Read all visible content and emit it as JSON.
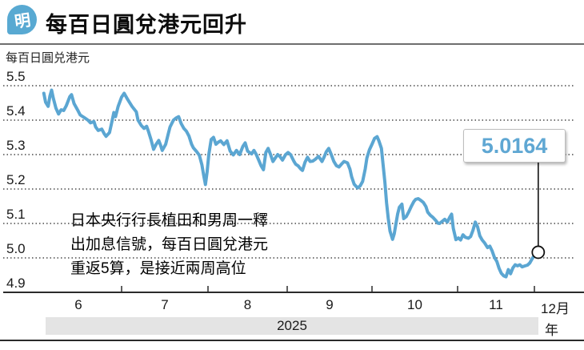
{
  "header": {
    "logo_char": "明",
    "title": "每百日圓兌港元回升"
  },
  "chart_data": {
    "type": "line",
    "title": "每百日圓兑港元",
    "ylabel": "每百日圓兑港元",
    "ylim": [
      4.9,
      5.5
    ],
    "y_ticks": [
      "5.5",
      "5.4",
      "5.3",
      "5.2",
      "5.1",
      "5.0",
      "4.9"
    ],
    "x_tick_labels": [
      "6",
      "7",
      "8",
      "9",
      "10",
      "11",
      "12月"
    ],
    "x_axis_note": "x values are decimal months of 2025 (6.0 = June 1)",
    "year_band_label": "2025",
    "year_suffix": "年",
    "grid": "dotted horizontal",
    "legend": "none",
    "line_color": "#5ba6d2",
    "last_value": 5.0164,
    "points": [
      [
        6.1,
        5.478
      ],
      [
        6.12,
        5.452
      ],
      [
        6.15,
        5.44
      ],
      [
        6.17,
        5.47
      ],
      [
        6.19,
        5.487
      ],
      [
        6.21,
        5.463
      ],
      [
        6.24,
        5.435
      ],
      [
        6.27,
        5.418
      ],
      [
        6.3,
        5.43
      ],
      [
        6.33,
        5.428
      ],
      [
        6.36,
        5.442
      ],
      [
        6.4,
        5.468
      ],
      [
        6.42,
        5.474
      ],
      [
        6.45,
        5.448
      ],
      [
        6.49,
        5.43
      ],
      [
        6.52,
        5.415
      ],
      [
        6.57,
        5.407
      ],
      [
        6.61,
        5.4
      ],
      [
        6.64,
        5.392
      ],
      [
        6.68,
        5.396
      ],
      [
        6.7,
        5.38
      ],
      [
        6.73,
        5.37
      ],
      [
        6.77,
        5.374
      ],
      [
        6.8,
        5.36
      ],
      [
        6.82,
        5.353
      ],
      [
        6.86,
        5.364
      ],
      [
        6.89,
        5.398
      ],
      [
        6.91,
        5.422
      ],
      [
        6.93,
        5.41
      ],
      [
        6.96,
        5.44
      ],
      [
        7.0,
        5.467
      ],
      [
        7.03,
        5.478
      ],
      [
        7.07,
        5.46
      ],
      [
        7.12,
        5.44
      ],
      [
        7.17,
        5.424
      ],
      [
        7.19,
        5.4
      ],
      [
        7.23,
        5.384
      ],
      [
        7.26,
        5.376
      ],
      [
        7.29,
        5.382
      ],
      [
        7.31,
        5.368
      ],
      [
        7.34,
        5.344
      ],
      [
        7.37,
        5.315
      ],
      [
        7.4,
        5.33
      ],
      [
        7.43,
        5.341
      ],
      [
        7.45,
        5.328
      ],
      [
        7.47,
        5.312
      ],
      [
        7.51,
        5.33
      ],
      [
        7.54,
        5.36
      ],
      [
        7.56,
        5.38
      ],
      [
        7.6,
        5.4
      ],
      [
        7.63,
        5.406
      ],
      [
        7.66,
        5.41
      ],
      [
        7.69,
        5.39
      ],
      [
        7.72,
        5.376
      ],
      [
        7.75,
        5.368
      ],
      [
        7.78,
        5.354
      ],
      [
        7.81,
        5.33
      ],
      [
        7.83,
        5.32
      ],
      [
        7.87,
        5.308
      ],
      [
        7.9,
        5.298
      ],
      [
        7.93,
        5.27
      ],
      [
        7.95,
        5.24
      ],
      [
        7.97,
        5.213
      ],
      [
        7.99,
        5.25
      ],
      [
        8.01,
        5.3
      ],
      [
        8.04,
        5.344
      ],
      [
        8.07,
        5.35
      ],
      [
        8.1,
        5.33
      ],
      [
        8.13,
        5.336
      ],
      [
        8.16,
        5.34
      ],
      [
        8.2,
        5.329
      ],
      [
        8.24,
        5.34
      ],
      [
        8.28,
        5.31
      ],
      [
        8.32,
        5.299
      ],
      [
        8.36,
        5.312
      ],
      [
        8.4,
        5.3
      ],
      [
        8.44,
        5.324
      ],
      [
        8.47,
        5.334
      ],
      [
        8.5,
        5.31
      ],
      [
        8.55,
        5.302
      ],
      [
        8.58,
        5.312
      ],
      [
        8.61,
        5.3
      ],
      [
        8.64,
        5.284
      ],
      [
        8.67,
        5.268
      ],
      [
        8.7,
        5.256
      ],
      [
        8.73,
        5.306
      ],
      [
        8.76,
        5.318
      ],
      [
        8.79,
        5.3
      ],
      [
        8.82,
        5.28
      ],
      [
        8.85,
        5.29
      ],
      [
        8.88,
        5.3
      ],
      [
        8.91,
        5.294
      ],
      [
        8.94,
        5.284
      ],
      [
        8.98,
        5.3
      ],
      [
        9.01,
        5.306
      ],
      [
        9.04,
        5.3
      ],
      [
        9.08,
        5.28
      ],
      [
        9.1,
        5.272
      ],
      [
        9.13,
        5.267
      ],
      [
        9.16,
        5.258
      ],
      [
        9.18,
        5.254
      ],
      [
        9.21,
        5.278
      ],
      [
        9.24,
        5.292
      ],
      [
        9.27,
        5.28
      ],
      [
        9.3,
        5.281
      ],
      [
        9.33,
        5.286
      ],
      [
        9.37,
        5.295
      ],
      [
        9.41,
        5.28
      ],
      [
        9.43,
        5.29
      ],
      [
        9.46,
        5.308
      ],
      [
        9.49,
        5.318
      ],
      [
        9.52,
        5.3
      ],
      [
        9.55,
        5.28
      ],
      [
        9.58,
        5.268
      ],
      [
        9.61,
        5.264
      ],
      [
        9.64,
        5.272
      ],
      [
        9.67,
        5.28
      ],
      [
        9.71,
        5.276
      ],
      [
        9.74,
        5.258
      ],
      [
        9.76,
        5.235
      ],
      [
        9.79,
        5.214
      ],
      [
        9.83,
        5.203
      ],
      [
        9.86,
        5.209
      ],
      [
        9.89,
        5.222
      ],
      [
        9.92,
        5.258
      ],
      [
        9.94,
        5.29
      ],
      [
        9.97,
        5.314
      ],
      [
        10.0,
        5.33
      ],
      [
        10.03,
        5.347
      ],
      [
        10.06,
        5.352
      ],
      [
        10.08,
        5.34
      ],
      [
        10.11,
        5.318
      ],
      [
        10.13,
        5.27
      ],
      [
        10.15,
        5.22
      ],
      [
        10.17,
        5.16
      ],
      [
        10.19,
        5.115
      ],
      [
        10.21,
        5.078
      ],
      [
        10.24,
        5.054
      ],
      [
        10.26,
        5.07
      ],
      [
        10.28,
        5.1
      ],
      [
        10.3,
        5.128
      ],
      [
        10.32,
        5.147
      ],
      [
        10.35,
        5.156
      ],
      [
        10.37,
        5.114
      ],
      [
        10.4,
        5.12
      ],
      [
        10.43,
        5.134
      ],
      [
        10.46,
        5.15
      ],
      [
        10.49,
        5.164
      ],
      [
        10.51,
        5.17
      ],
      [
        10.54,
        5.172
      ],
      [
        10.57,
        5.167
      ],
      [
        10.6,
        5.161
      ],
      [
        10.63,
        5.149
      ],
      [
        10.65,
        5.133
      ],
      [
        10.68,
        5.124
      ],
      [
        10.71,
        5.118
      ],
      [
        10.74,
        5.11
      ],
      [
        10.77,
        5.101
      ],
      [
        10.79,
        5.1
      ],
      [
        10.82,
        5.106
      ],
      [
        10.85,
        5.112
      ],
      [
        10.88,
        5.104
      ],
      [
        10.91,
        5.119
      ],
      [
        10.93,
        5.127
      ],
      [
        10.95,
        5.086
      ],
      [
        10.98,
        5.053
      ],
      [
        11.01,
        5.058
      ],
      [
        11.04,
        5.052
      ],
      [
        11.07,
        5.067
      ],
      [
        11.1,
        5.06
      ],
      [
        11.14,
        5.057
      ],
      [
        11.17,
        5.062
      ],
      [
        11.2,
        5.08
      ],
      [
        11.23,
        5.104
      ],
      [
        11.26,
        5.09
      ],
      [
        11.29,
        5.064
      ],
      [
        11.32,
        5.052
      ],
      [
        11.35,
        5.044
      ],
      [
        11.39,
        5.03
      ],
      [
        11.42,
        5.034
      ],
      [
        11.45,
        5.02
      ],
      [
        11.48,
        5.001
      ],
      [
        11.51,
        4.99
      ],
      [
        11.54,
        4.97
      ],
      [
        11.57,
        4.955
      ],
      [
        11.6,
        4.948
      ],
      [
        11.63,
        4.945
      ],
      [
        11.66,
        4.966
      ],
      [
        11.69,
        4.954
      ],
      [
        11.72,
        4.971
      ],
      [
        11.75,
        4.98
      ],
      [
        11.78,
        4.977
      ],
      [
        11.81,
        4.98
      ],
      [
        11.84,
        4.974
      ],
      [
        11.88,
        4.977
      ],
      [
        11.91,
        4.979
      ],
      [
        11.94,
        4.985
      ],
      [
        11.97,
        4.997
      ],
      [
        12.0,
        5.008
      ],
      [
        12.03,
        5.013
      ],
      [
        12.05,
        5.0164
      ]
    ]
  },
  "annotation": {
    "lines": [
      "日本央行行長植田和男周一釋",
      "出加息信號，每百日圓兌港元",
      "重返5算，是接近兩周高位"
    ]
  },
  "callout": {
    "value_label": "5.0164"
  },
  "colors": {
    "line": "#5ba6d2",
    "logo": "#58a9d2",
    "callout_text": "#5fa7d3",
    "band": "#e4e4e4",
    "grid": "#4a4a4a"
  }
}
